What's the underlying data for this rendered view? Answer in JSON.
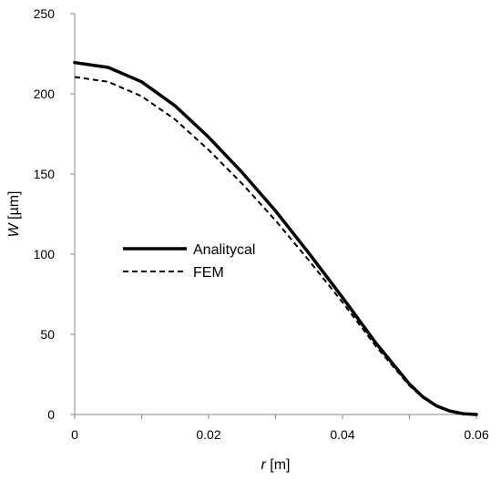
{
  "chart_data": {
    "type": "line",
    "xlabel": {
      "var": "r",
      "unit": " [m]"
    },
    "ylabel": {
      "var": "W",
      "unit": " [µm]"
    },
    "xlim": [
      0,
      0.06
    ],
    "ylim": [
      0,
      250
    ],
    "x_ticks": [
      0,
      0.02,
      0.04,
      0.06
    ],
    "x_tick_labels": [
      "0",
      "0.02",
      "0.04",
      "0.06"
    ],
    "x_minor_ticks": [
      0.01,
      0.03,
      0.05
    ],
    "y_ticks": [
      0,
      50,
      100,
      150,
      200,
      250
    ],
    "y_tick_labels": [
      "0",
      "50",
      "100",
      "150",
      "200",
      "250"
    ],
    "grid": false,
    "legend_position": "center-left",
    "series": [
      {
        "name": "Analitycal",
        "style": "solid",
        "x": [
          0,
          0.005,
          0.01,
          0.015,
          0.02,
          0.025,
          0.03,
          0.035,
          0.04,
          0.045,
          0.05,
          0.052,
          0.054,
          0.056,
          0.058,
          0.06
        ],
        "y": [
          219.5,
          216.5,
          207.5,
          192.5,
          173,
          151,
          127,
          100.5,
          73,
          44.5,
          19,
          11,
          5.5,
          2.2,
          0.5,
          0
        ]
      },
      {
        "name": "FEM",
        "style": "dashed",
        "x": [
          0,
          0.005,
          0.01,
          0.015,
          0.02,
          0.025,
          0.03,
          0.035,
          0.04,
          0.045,
          0.05,
          0.052,
          0.054,
          0.056,
          0.058,
          0.06
        ],
        "y": [
          210.5,
          207.5,
          198.5,
          184,
          165,
          144,
          121,
          96,
          70,
          42.5,
          18,
          10.5,
          5,
          2,
          0.5,
          0
        ]
      }
    ]
  }
}
